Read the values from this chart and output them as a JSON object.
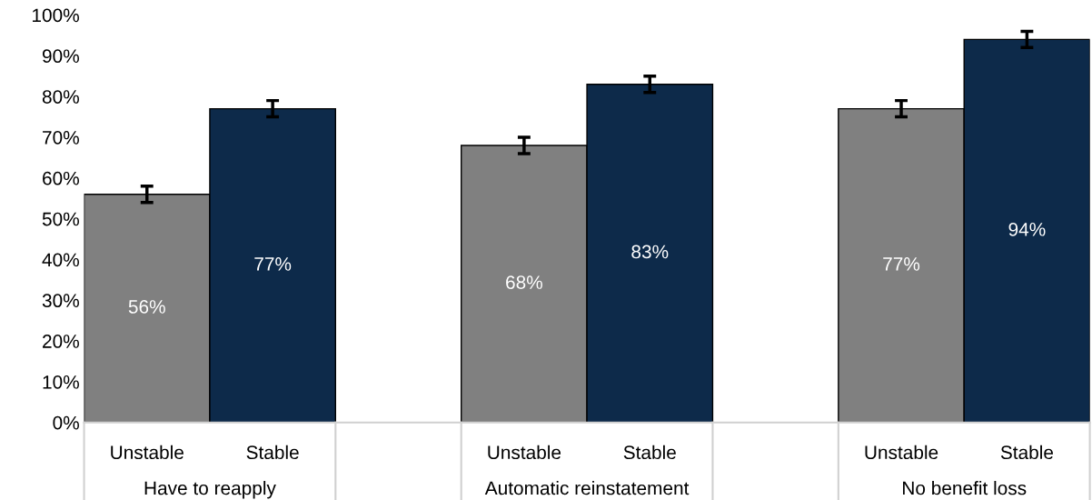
{
  "chart_data": {
    "type": "bar",
    "categories": [
      "Unstable",
      "Stable",
      null,
      "Unstable",
      "Stable",
      null,
      "Unstable",
      "Stable"
    ],
    "values": [
      56,
      77,
      null,
      68,
      83,
      null,
      77,
      94
    ],
    "colors": [
      "#808080",
      "#0d2a4a",
      null,
      "#808080",
      "#0d2a4a",
      null,
      "#808080",
      "#0d2a4a"
    ],
    "errors": [
      2,
      2,
      null,
      2,
      2,
      null,
      2,
      2
    ],
    "value_labels": [
      "56%",
      "77%",
      null,
      "68%",
      "83%",
      null,
      "77%",
      "94%"
    ],
    "annotations": [
      "Have to reapply",
      "Automatic reinstatement",
      "No benefit loss"
    ],
    "ylim": [
      0,
      100
    ],
    "yticks": [
      {
        "value": 0,
        "label": "0%"
      },
      {
        "value": 10,
        "label": "10%"
      },
      {
        "value": 20,
        "label": "20%"
      },
      {
        "value": 30,
        "label": "30%"
      },
      {
        "value": 40,
        "label": "40%"
      },
      {
        "value": 50,
        "label": "50%"
      },
      {
        "value": 60,
        "label": "60%"
      },
      {
        "value": 70,
        "label": "70%"
      },
      {
        "value": 80,
        "label": "80%"
      },
      {
        "value": 90,
        "label": "90%"
      },
      {
        "value": 100,
        "label": "100%"
      }
    ],
    "grid": false
  }
}
